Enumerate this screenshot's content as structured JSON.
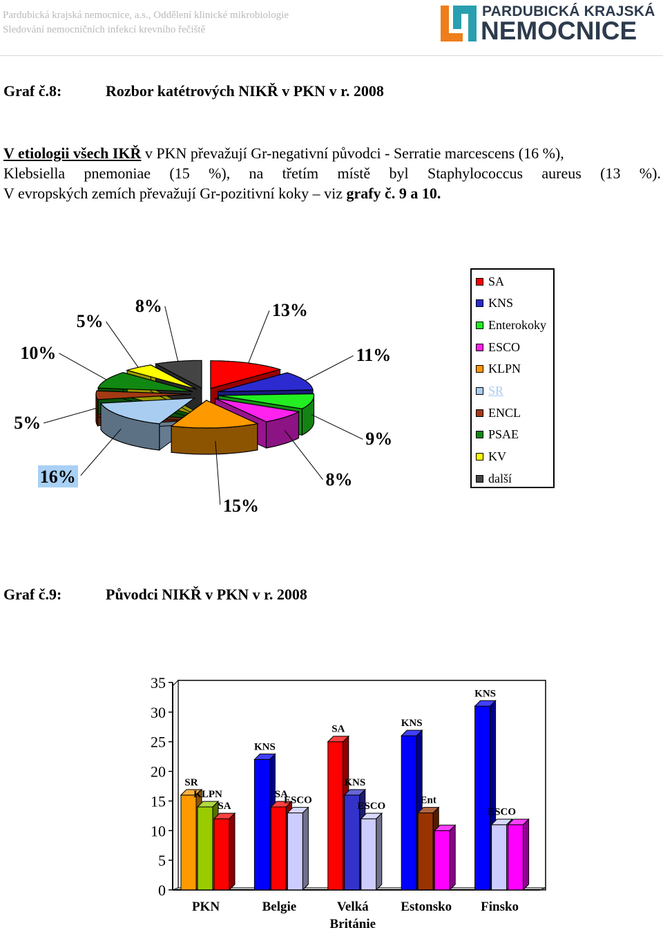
{
  "header": {
    "line1": "Pardubická krajská nemocnice, a.s., Oddělení klinické mikrobiologie",
    "line2": "Sledování nemocničních infekcí krevního řečiště",
    "logo_line1": "PARDUBICKÁ KRAJSKÁ",
    "logo_line2": "NEMOCNICE",
    "colors": {
      "logo_orange": "#ef7d1a",
      "logo_teal": "#2a9fb0",
      "logo_text": "#2d3b4d"
    }
  },
  "graf8": {
    "number": "Graf č.8:",
    "title": "Rozbor katétrových NIKŘ v PKN v r. 2008"
  },
  "paragraph": {
    "underlined": "V etiologii všech IKŘ",
    "line1_rest": " v PKN převažují Gr-negativní původci - Serratie marcescens (16 %),",
    "line2_words": [
      "Klebsiella",
      "pnemoniae",
      "(15",
      "%),",
      "na",
      "třetím",
      "místě",
      "byl",
      "Staphylococcus",
      "aureus",
      "(13",
      "%)."
    ],
    "line3_plain": "V evropských zemích převažují Gr-pozitivní koky – viz ",
    "line3_bold": "grafy č. 9 a 10."
  },
  "chart_data": [
    {
      "type": "pie",
      "title": "",
      "legend_position": "right",
      "slices": [
        {
          "name": "SA",
          "value": 13,
          "label": "13%",
          "color": "#ff0000"
        },
        {
          "name": "KNS",
          "value": 11,
          "label": "11%",
          "color": "#2b2bd0"
        },
        {
          "name": "Enterokoky",
          "value": 9,
          "label": "9%",
          "color": "#22ee22"
        },
        {
          "name": "ESCO",
          "value": 8,
          "label": "8%",
          "color": "#ff22ee"
        },
        {
          "name": "KLPN",
          "value": 15,
          "label": "15%",
          "color": "#ff9900"
        },
        {
          "name": "SR",
          "value": 16,
          "label": "16%",
          "color": "#a9cdf0"
        },
        {
          "name": "ENCL",
          "value": 5,
          "label": "5%",
          "color": "#a33a14"
        },
        {
          "name": "PSAE",
          "value": 10,
          "label": "10%",
          "color": "#118811"
        },
        {
          "name": "KV",
          "value": 5,
          "label": "5%",
          "color": "#ffff00"
        },
        {
          "name": "další",
          "value": 8,
          "label": "8%",
          "color": "#444444"
        }
      ]
    },
    {
      "type": "bar",
      "title": "",
      "xlabel": "",
      "ylabel": "",
      "ylim": [
        0,
        35
      ],
      "yticks": [
        0,
        5,
        10,
        15,
        20,
        25,
        30,
        35
      ],
      "grid": false,
      "categories": [
        "PKN",
        "Belgie",
        "Velká Británie",
        "Estonsko",
        "Finsko"
      ],
      "category_labels": [
        [
          "PKN"
        ],
        [
          "Belgie"
        ],
        [
          "Velká",
          "Británie"
        ],
        [
          "Estonsko"
        ],
        [
          "Finsko"
        ]
      ],
      "groups": [
        {
          "category": "PKN",
          "bars": [
            {
              "label": "SR",
              "value": 16,
              "color": "#ff9900"
            },
            {
              "label": "KLPN",
              "value": 14,
              "color": "#99cc00"
            },
            {
              "label": "SA",
              "value": 12,
              "color": "#ff0000"
            }
          ]
        },
        {
          "category": "Belgie",
          "bars": [
            {
              "label": "KNS",
              "value": 22,
              "color": "#0000ff"
            },
            {
              "label": "SA",
              "value": 14,
              "color": "#ff0000"
            },
            {
              "label": "ESCO",
              "value": 13,
              "color": "#ccccff"
            }
          ]
        },
        {
          "category": "Velká Británie",
          "bars": [
            {
              "label": "SA",
              "value": 25,
              "color": "#ff0000"
            },
            {
              "label": "KNS",
              "value": 16,
              "color": "#3333cc"
            },
            {
              "label": "ESCO",
              "value": 12,
              "color": "#ccccff"
            }
          ]
        },
        {
          "category": "Estonsko",
          "bars": [
            {
              "label": "KNS",
              "value": 26,
              "color": "#0000ff"
            },
            {
              "label": "Ent",
              "value": 13,
              "color": "#993300"
            },
            {
              "label": "",
              "value": 10,
              "color": "#ff00ff"
            }
          ]
        },
        {
          "category": "Finsko",
          "bars": [
            {
              "label": "KNS",
              "value": 31,
              "color": "#0000ff"
            },
            {
              "label": "ESCO",
              "value": 11,
              "color": "#ccccff"
            },
            {
              "label": "",
              "value": 11,
              "color": "#ff00ff"
            }
          ]
        }
      ]
    }
  ],
  "graf9": {
    "number": "Graf č.9:",
    "title": "Původci NIKŘ v PKN v r. 2008"
  }
}
